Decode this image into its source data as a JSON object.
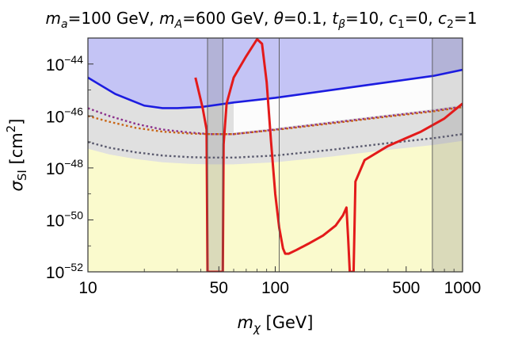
{
  "chart_data": {
    "type": "line",
    "title_parts": [
      {
        "sym": "m",
        "sub": "a",
        "rest": "=100 GeV, "
      },
      {
        "sym": "m",
        "sub": "A",
        "rest": "=600 GeV, "
      },
      {
        "sym": "θ",
        "sub": "",
        "rest": "=0.1, "
      },
      {
        "sym": "t",
        "sub": "β",
        "rest": "=10, "
      },
      {
        "sym": "c",
        "sub": "1",
        "rest": "=0, "
      },
      {
        "sym": "c",
        "sub": "2",
        "rest": "=1"
      }
    ],
    "xlabel": {
      "sym": "m",
      "sub": "χ",
      "rest": " [GeV]"
    },
    "ylabel": {
      "sym": "σ",
      "sub": "SI",
      "rest": " [cm",
      "sup": "2",
      "end": "]"
    },
    "x_scale": "log",
    "y_scale": "log",
    "xlim": [
      10,
      1000
    ],
    "ylim": [
      1e-52,
      1e-43
    ],
    "x_ticks": [
      {
        "value": 10,
        "label": "10"
      },
      {
        "value": 50,
        "label": "50"
      },
      {
        "value": 100,
        "label": "100"
      },
      {
        "value": 500,
        "label": "500"
      },
      {
        "value": 1000,
        "label": "1000"
      }
    ],
    "y_ticks": [
      {
        "exp": -44,
        "label_base": "10",
        "label_exp": "−44"
      },
      {
        "exp": -46,
        "label_base": "10",
        "label_exp": "−46"
      },
      {
        "exp": -48,
        "label_base": "10",
        "label_exp": "−48"
      },
      {
        "exp": -50,
        "label_base": "10",
        "label_exp": "−50"
      },
      {
        "exp": -52,
        "label_base": "10",
        "label_exp": "−52"
      }
    ],
    "vertical_lines": [
      43.5,
      52.5,
      105,
      690
    ],
    "colors": {
      "excluded_blue_fill": "#c4c4f5",
      "excluded_blue_line": "#1c1ce0",
      "gray_region": "#e0e0e0",
      "neutrino_floor": "#fafacd",
      "shaded_band": "#888888",
      "relic_curve": "#e31a1a",
      "purple_dashed": "#8b2f8b",
      "orange_dashed": "#c86414",
      "gray_dashed": "#5a5a6e"
    },
    "shaded_bands": [
      [
        43.5,
        52.5
      ],
      [
        690,
        1000
      ]
    ],
    "series": [
      {
        "style": "solid-blue-limit",
        "x": [
          10,
          14,
          20,
          25,
          30,
          40,
          60,
          100,
          200,
          400,
          700,
          1000
        ],
        "y": [
          3e-45,
          7e-46,
          2.5e-46,
          2e-46,
          2e-46,
          2.2e-46,
          3.3e-46,
          5e-46,
          1e-45,
          2e-45,
          3.5e-45,
          6e-45
        ]
      },
      {
        "style": "dashed-purple",
        "x": [
          10,
          13,
          18,
          25,
          35,
          45,
          60,
          100,
          200,
          400,
          700,
          1000
        ],
        "y": [
          2e-46,
          1e-46,
          5e-47,
          3e-47,
          2.3e-47,
          2e-47,
          2e-47,
          3e-47,
          5.5e-47,
          1e-46,
          1.6e-46,
          2.3e-46
        ]
      },
      {
        "style": "dashed-orange",
        "x": [
          10,
          13,
          18,
          25,
          35,
          45,
          60,
          100,
          200,
          400,
          700,
          1000
        ],
        "y": [
          1e-46,
          6e-47,
          3.5e-47,
          2.5e-47,
          2.1e-47,
          2e-47,
          2e-47,
          2.9e-47,
          5.2e-47,
          9.5e-47,
          1.5e-46,
          2.2e-46
        ]
      },
      {
        "style": "dashed-gray",
        "x": [
          10,
          13,
          18,
          25,
          35,
          45,
          60,
          100,
          200,
          400,
          700,
          1000
        ],
        "y": [
          1e-47,
          6e-48,
          4e-48,
          3e-48,
          2.6e-48,
          2.5e-48,
          2.5e-48,
          3e-48,
          5e-48,
          9e-48,
          1.4e-47,
          2e-47
        ]
      },
      {
        "style": "solid-red-relic",
        "x": [
          37.5,
          41,
          43,
          43.5,
          43.5,
          44,
          46,
          49,
          50.5,
          51,
          51.5,
          52,
          52.5,
          53,
          55,
          60,
          70,
          80,
          85,
          90,
          95,
          100,
          105,
          110,
          113,
          118,
          130,
          150,
          180,
          210,
          230,
          240,
          245,
          250,
          255,
          262,
          268,
          300,
          400,
          600,
          800,
          1000
        ],
        "y": [
          3e-45,
          2e-46,
          3e-47,
          1e-52,
          1e-52,
          1e-52,
          1e-52,
          1e-52,
          1e-52,
          1e-52,
          1e-52,
          1e-52,
          1e-52,
          8e-48,
          3e-46,
          3e-45,
          2e-44,
          9e-44,
          6e-44,
          2e-45,
          1e-47,
          1e-49,
          5e-51,
          8e-52,
          5e-52,
          5e-52,
          7e-52,
          1.2e-51,
          2.5e-51,
          6e-51,
          1.5e-50,
          3e-50,
          2e-51,
          1e-52,
          1e-52,
          1e-52,
          3e-49,
          2e-48,
          7e-48,
          2.5e-47,
          8e-47,
          3e-46
        ]
      }
    ]
  }
}
